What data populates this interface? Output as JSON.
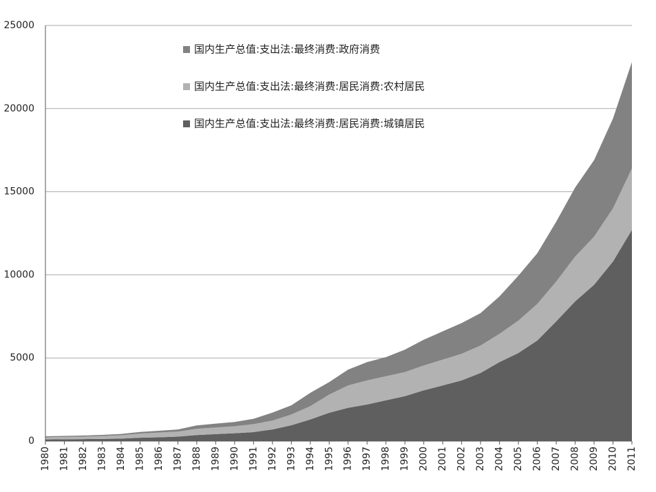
{
  "chart_data": {
    "type": "stacked-area",
    "categories": [
      "1980",
      "1981",
      "1982",
      "1983",
      "1984",
      "1985",
      "1986",
      "1987",
      "1988",
      "1989",
      "1990",
      "1991",
      "1992",
      "1993",
      "1994",
      "1995",
      "1996",
      "1997",
      "1998",
      "1999",
      "2000",
      "2001",
      "2002",
      "2003",
      "2004",
      "2005",
      "2006",
      "2007",
      "2008",
      "2009",
      "2010",
      "2011"
    ],
    "series": [
      {
        "name": "国内生产总值:支出法:最终消费:政府消费",
        "color": "#828282",
        "values": [
          60,
          60,
          65,
          70,
          80,
          100,
          110,
          130,
          200,
          230,
          260,
          320,
          480,
          550,
          800,
          750,
          950,
          1100,
          1150,
          1350,
          1550,
          1700,
          1850,
          1950,
          2250,
          2700,
          3050,
          3600,
          4150,
          4600,
          5400,
          6400
        ]
      },
      {
        "name": "国内生产总值:支出法:最终消费:居民消费:农村居民",
        "color": "#b2b2b2",
        "values": [
          130,
          140,
          150,
          170,
          200,
          250,
          280,
          300,
          380,
          400,
          420,
          480,
          530,
          650,
          800,
          1100,
          1350,
          1450,
          1450,
          1450,
          1500,
          1550,
          1600,
          1650,
          1700,
          1950,
          2200,
          2400,
          2700,
          2900,
          3200,
          3700
        ]
      },
      {
        "name": "国内生产总值:支出法:最终消费:居民消费:城镇居民",
        "color": "#5f5f5f",
        "values": [
          100,
          110,
          120,
          130,
          150,
          200,
          230,
          270,
          360,
          420,
          470,
          540,
          700,
          950,
          1300,
          1700,
          2000,
          2200,
          2450,
          2700,
          3050,
          3350,
          3650,
          4100,
          4750,
          5300,
          6050,
          7200,
          8400,
          9400,
          10800,
          12700
        ]
      }
    ],
    "ylim": [
      0,
      25000
    ],
    "yticks": [
      0,
      5000,
      10000,
      15000,
      20000,
      25000
    ],
    "grid": true
  }
}
